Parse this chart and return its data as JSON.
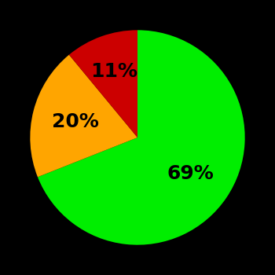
{
  "slices": [
    69,
    20,
    11
  ],
  "colors": [
    "#00ee00",
    "#ffa500",
    "#cc0000"
  ],
  "labels": [
    "69%",
    "20%",
    "11%"
  ],
  "background_color": "#000000",
  "text_color": "#000000",
  "label_fontsize": 18,
  "label_fontweight": "bold",
  "startangle": 90,
  "figsize": [
    3.5,
    3.5
  ],
  "dpi": 100,
  "label_distances": [
    0.6,
    0.6,
    0.65
  ]
}
